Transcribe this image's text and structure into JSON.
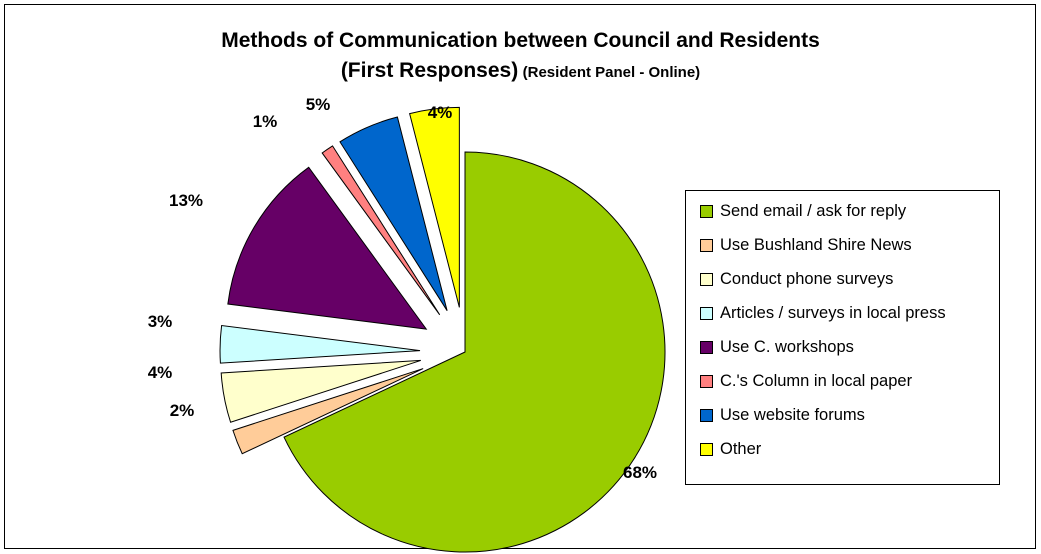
{
  "chart_data": {
    "type": "pie",
    "title": "Methods of Communication between Council and Residents",
    "subtitle": "(First Responses)",
    "subtitle_small": "(Resident Panel - Online)",
    "exploded": true,
    "legend_position": "right",
    "slices": [
      {
        "label": "Send email / ask for reply",
        "value": 68,
        "value_label": "68%",
        "color": "#99CC00"
      },
      {
        "label": "Use Bushland Shire News",
        "value": 2,
        "value_label": "2%",
        "color": "#FFCC99"
      },
      {
        "label": "Conduct phone surveys",
        "value": 4,
        "value_label": "4%",
        "color": "#FFFFCC"
      },
      {
        "label": "Articles / surveys in local press",
        "value": 3,
        "value_label": "3%",
        "color": "#CCFFFF"
      },
      {
        "label": "Use C. workshops",
        "value": 13,
        "value_label": "13%",
        "color": "#660066"
      },
      {
        "label": "C.'s Column in local paper",
        "value": 1,
        "value_label": "1%",
        "color": "#FF8080"
      },
      {
        "label": "Use website forums",
        "value": 5,
        "value_label": "5%",
        "color": "#0066CC"
      },
      {
        "label": "Other",
        "value": 4,
        "value_label": "4%",
        "color": "#FFFF00"
      }
    ]
  }
}
